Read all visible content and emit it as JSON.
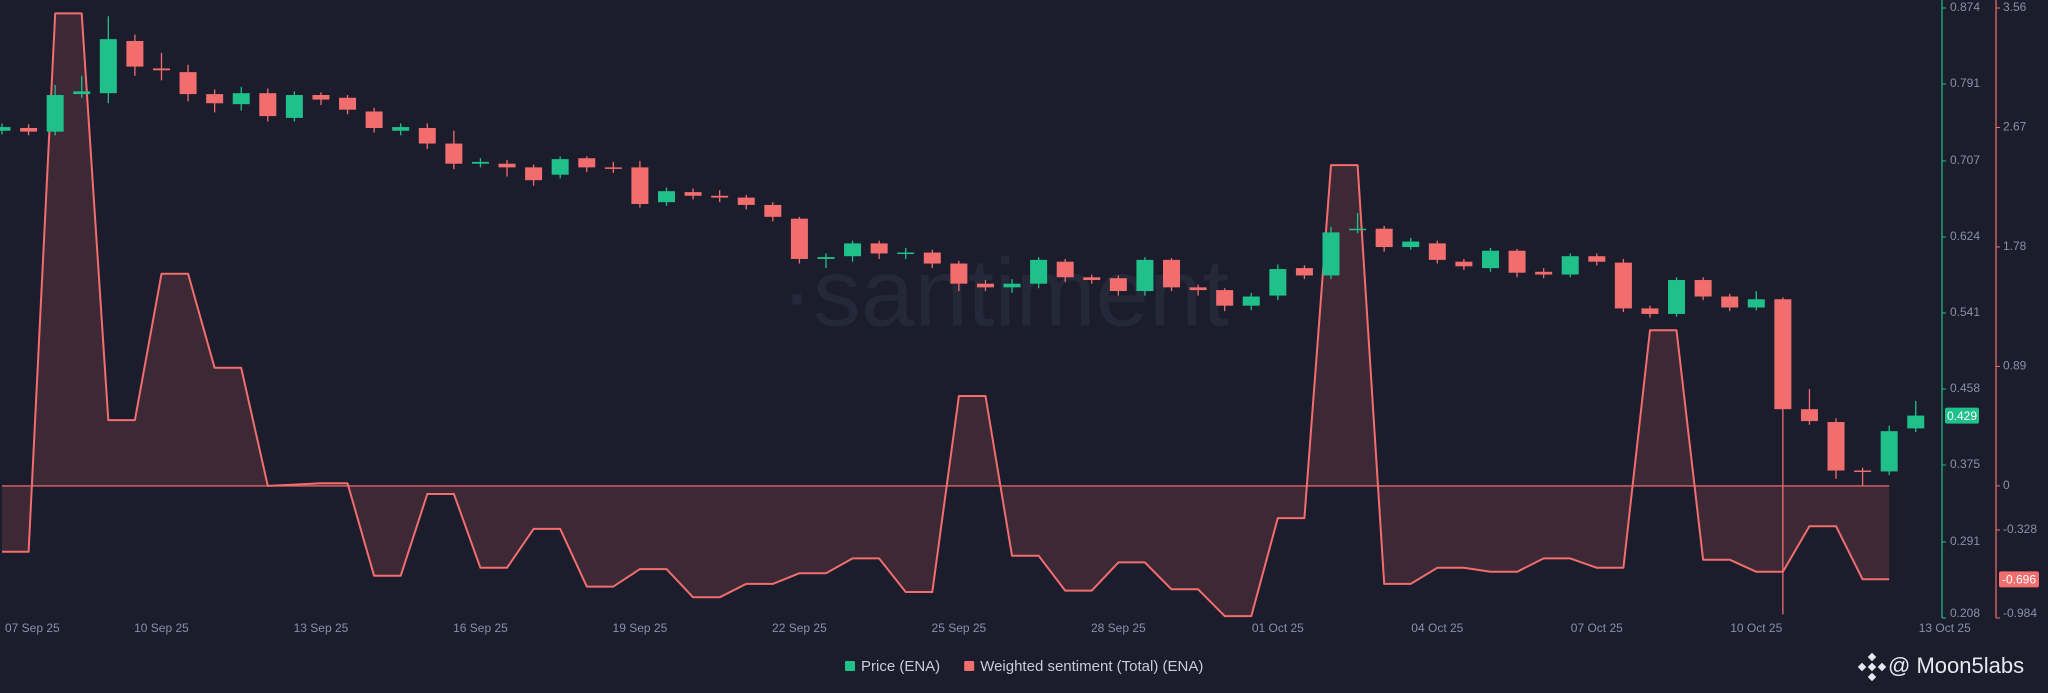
{
  "chart_data": {
    "type": "candlestick",
    "watermark": "·santiment",
    "credit": "@ Moon5labs",
    "categories": [
      "07 Sep 25",
      null,
      null,
      null,
      null,
      null,
      "10 Sep 25",
      null,
      null,
      null,
      null,
      null,
      "13 Sep 25",
      null,
      null,
      null,
      null,
      null,
      "16 Sep 25",
      null,
      null,
      null,
      null,
      null,
      "19 Sep 25",
      null,
      null,
      null,
      null,
      null,
      "22 Sep 25",
      null,
      null,
      null,
      null,
      null,
      "25 Sep 25",
      null,
      null,
      null,
      null,
      null,
      "28 Sep 25",
      null,
      null,
      null,
      null,
      null,
      "01 Oct 25",
      null,
      null,
      null,
      null,
      null,
      "04 Oct 25",
      null,
      null,
      null,
      null,
      null,
      "07 Oct 25",
      null,
      null,
      null,
      null,
      null,
      "10 Oct 25",
      null,
      null,
      null,
      null,
      null,
      "13 Oct 25"
    ],
    "ylim": [
      0.208,
      0.874
    ],
    "yticks": [
      0.208,
      0.291,
      0.375,
      0.458,
      0.541,
      0.624,
      0.707,
      0.791,
      0.874
    ],
    "y2lim": [
      -0.984,
      3.56
    ],
    "y2ticks": [
      -0.984,
      -0.328,
      0,
      0.89,
      1.78,
      2.67,
      3.56
    ],
    "series": [
      {
        "name": "Price (ENA)",
        "type": "candlestick",
        "color": "#1fc08a",
        "down_color": "#f26d6d",
        "open": [
          0.74,
          0.743,
          0.739,
          0.78,
          0.781,
          0.838,
          0.808,
          0.804,
          0.78,
          0.769,
          0.781,
          0.754,
          0.779,
          0.776,
          0.761,
          0.74,
          0.743,
          0.726,
          0.704,
          0.704,
          0.7,
          0.692,
          0.71,
          0.7,
          0.7,
          0.662,
          0.673,
          0.669,
          0.667,
          0.659,
          0.644,
          0.6,
          0.603,
          0.617,
          0.606,
          0.607,
          0.595,
          0.573,
          0.569,
          0.573,
          0.597,
          0.58,
          0.579,
          0.565,
          0.599,
          0.569,
          0.566,
          0.549,
          0.56,
          0.59,
          0.582,
          0.632,
          0.633,
          0.613,
          0.617,
          0.597,
          0.59,
          0.609,
          0.586,
          0.583,
          0.603,
          0.596,
          0.546,
          0.54,
          0.577,
          0.559,
          0.547,
          0.556,
          0.436,
          0.422,
          0.369,
          0.368,
          0.415
        ],
        "high": [
          0.748,
          0.747,
          0.79,
          0.8,
          0.865,
          0.845,
          0.825,
          0.812,
          0.785,
          0.788,
          0.786,
          0.783,
          0.782,
          0.779,
          0.765,
          0.748,
          0.748,
          0.74,
          0.71,
          0.708,
          0.703,
          0.712,
          0.712,
          0.706,
          0.707,
          0.678,
          0.677,
          0.675,
          0.67,
          0.662,
          0.646,
          0.606,
          0.62,
          0.62,
          0.612,
          0.61,
          0.598,
          0.577,
          0.578,
          0.602,
          0.6,
          0.583,
          0.582,
          0.602,
          0.601,
          0.572,
          0.568,
          0.563,
          0.594,
          0.593,
          0.635,
          0.65,
          0.636,
          0.623,
          0.62,
          0.6,
          0.612,
          0.611,
          0.59,
          0.606,
          0.606,
          0.6,
          0.549,
          0.58,
          0.58,
          0.562,
          0.565,
          0.558,
          0.458,
          0.426,
          0.372,
          0.418,
          0.445
        ],
        "low": [
          0.736,
          0.735,
          0.735,
          0.776,
          0.77,
          0.8,
          0.795,
          0.772,
          0.76,
          0.762,
          0.75,
          0.75,
          0.768,
          0.758,
          0.738,
          0.735,
          0.72,
          0.698,
          0.7,
          0.69,
          0.68,
          0.688,
          0.695,
          0.694,
          0.656,
          0.658,
          0.665,
          0.662,
          0.654,
          0.641,
          0.595,
          0.59,
          0.597,
          0.6,
          0.6,
          0.59,
          0.565,
          0.565,
          0.563,
          0.568,
          0.575,
          0.573,
          0.56,
          0.56,
          0.565,
          0.56,
          0.543,
          0.544,
          0.555,
          0.578,
          0.578,
          0.628,
          0.608,
          0.61,
          0.595,
          0.588,
          0.586,
          0.58,
          0.579,
          0.58,
          0.593,
          0.542,
          0.536,
          0.537,
          0.555,
          0.543,
          0.544,
          0.212,
          0.419,
          0.36,
          0.352,
          0.364,
          0.411
        ],
        "close": [
          0.744,
          0.739,
          0.779,
          0.783,
          0.84,
          0.81,
          0.806,
          0.78,
          0.77,
          0.781,
          0.756,
          0.779,
          0.774,
          0.763,
          0.743,
          0.744,
          0.726,
          0.704,
          0.706,
          0.7,
          0.686,
          0.709,
          0.7,
          0.699,
          0.66,
          0.674,
          0.669,
          0.667,
          0.659,
          0.646,
          0.6,
          0.602,
          0.617,
          0.606,
          0.607,
          0.595,
          0.573,
          0.569,
          0.573,
          0.599,
          0.58,
          0.577,
          0.565,
          0.599,
          0.569,
          0.566,
          0.549,
          0.559,
          0.589,
          0.582,
          0.629,
          0.633,
          0.613,
          0.619,
          0.599,
          0.592,
          0.609,
          0.585,
          0.583,
          0.603,
          0.597,
          0.546,
          0.54,
          0.577,
          0.559,
          0.547,
          0.556,
          0.436,
          0.423,
          0.369,
          0.368,
          0.412,
          0.429
        ]
      },
      {
        "name": "Weighted sentiment (Total) (ENA)",
        "type": "area",
        "axis": "y2",
        "color": "#f26d6d",
        "values": [
          -0.49,
          -0.49,
          3.52,
          3.52,
          0.49,
          0.49,
          1.58,
          1.58,
          0.88,
          0.88,
          0,
          0.01,
          0.02,
          0.02,
          -0.67,
          -0.67,
          -0.06,
          -0.06,
          -0.61,
          -0.61,
          -0.32,
          -0.32,
          -0.75,
          -0.75,
          -0.62,
          -0.62,
          -0.83,
          -0.83,
          -0.73,
          -0.73,
          -0.65,
          -0.65,
          -0.54,
          -0.54,
          -0.79,
          -0.79,
          0.67,
          0.67,
          -0.52,
          -0.52,
          -0.78,
          -0.78,
          -0.57,
          -0.57,
          -0.77,
          -0.77,
          -0.97,
          -0.97,
          -0.24,
          -0.24,
          2.39,
          2.39,
          -0.73,
          -0.73,
          -0.61,
          -0.61,
          -0.64,
          -0.64,
          -0.54,
          -0.54,
          -0.61,
          -0.61,
          1.16,
          1.16,
          -0.55,
          -0.55,
          -0.64,
          -0.64,
          -0.3,
          -0.3,
          -0.696,
          -0.696,
          null
        ]
      }
    ]
  }
}
